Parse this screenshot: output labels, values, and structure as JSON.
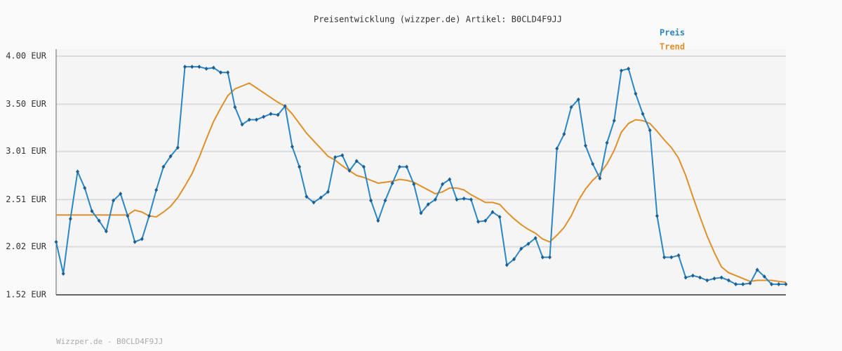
{
  "chart_data": {
    "type": "line",
    "title": "Preisentwicklung (wizzper.de) Artikel: B0CLD4F9JJ",
    "footer": "Wizzper.de - B0CLD4F9JJ",
    "ylim": [
      1.52,
      4.0
    ],
    "yticks": [
      {
        "value": 1.52,
        "label": "1.52 EUR"
      },
      {
        "value": 2.02,
        "label": "2.02 EUR"
      },
      {
        "value": 2.51,
        "label": "2.51 EUR"
      },
      {
        "value": 3.01,
        "label": "3.01 EUR"
      },
      {
        "value": 3.5,
        "label": "3.50 EUR"
      },
      {
        "value": 4.0,
        "label": "4.00 EUR"
      }
    ],
    "grid": true,
    "legend": "top-right",
    "series": [
      {
        "name": "Preis",
        "color": "#2a86c4",
        "markers": true,
        "values": [
          2.07,
          1.74,
          2.31,
          2.8,
          2.63,
          2.39,
          2.29,
          2.18,
          2.5,
          2.57,
          2.34,
          2.07,
          2.1,
          2.34,
          2.61,
          2.85,
          2.96,
          3.05,
          3.89,
          3.89,
          3.89,
          3.87,
          3.88,
          3.83,
          3.83,
          3.47,
          3.29,
          3.34,
          3.34,
          3.37,
          3.4,
          3.39,
          3.48,
          3.06,
          2.85,
          2.54,
          2.48,
          2.53,
          2.59,
          2.95,
          2.97,
          2.81,
          2.91,
          2.85,
          2.5,
          2.29,
          2.5,
          2.68,
          2.85,
          2.85,
          2.67,
          2.37,
          2.46,
          2.51,
          2.67,
          2.72,
          2.51,
          2.52,
          2.51,
          2.28,
          2.29,
          2.38,
          2.33,
          1.83,
          1.89,
          2.0,
          2.05,
          2.11,
          1.91,
          1.91,
          3.04,
          3.19,
          3.47,
          3.55,
          3.07,
          2.88,
          2.73,
          3.1,
          3.33,
          3.85,
          3.87,
          3.61,
          3.4,
          3.23,
          2.34,
          1.91,
          1.91,
          1.93,
          1.7,
          1.72,
          1.7,
          1.67,
          1.69,
          1.7,
          1.67,
          1.63,
          1.63,
          1.64,
          1.78,
          1.71,
          1.63,
          1.63,
          1.63
        ]
      },
      {
        "name": "Trend",
        "color": "#e0902a",
        "markers": false,
        "values": [
          2.35,
          2.35,
          2.35,
          2.35,
          2.35,
          2.35,
          2.35,
          2.35,
          2.35,
          2.35,
          2.35,
          2.4,
          2.38,
          2.34,
          2.33,
          2.38,
          2.44,
          2.53,
          2.65,
          2.78,
          2.95,
          3.14,
          3.32,
          3.46,
          3.59,
          3.66,
          3.69,
          3.72,
          3.67,
          3.62,
          3.57,
          3.52,
          3.48,
          3.4,
          3.3,
          3.2,
          3.12,
          3.04,
          2.96,
          2.92,
          2.86,
          2.81,
          2.76,
          2.74,
          2.71,
          2.68,
          2.69,
          2.7,
          2.72,
          2.71,
          2.69,
          2.65,
          2.61,
          2.57,
          2.59,
          2.63,
          2.63,
          2.61,
          2.56,
          2.52,
          2.48,
          2.48,
          2.46,
          2.38,
          2.31,
          2.25,
          2.2,
          2.16,
          2.1,
          2.07,
          2.14,
          2.22,
          2.34,
          2.5,
          2.62,
          2.71,
          2.78,
          2.88,
          3.02,
          3.21,
          3.3,
          3.34,
          3.33,
          3.3,
          3.22,
          3.13,
          3.05,
          2.94,
          2.76,
          2.54,
          2.33,
          2.13,
          1.96,
          1.81,
          1.75,
          1.72,
          1.69,
          1.66,
          1.67,
          1.67,
          1.67,
          1.66,
          1.65
        ]
      }
    ]
  }
}
